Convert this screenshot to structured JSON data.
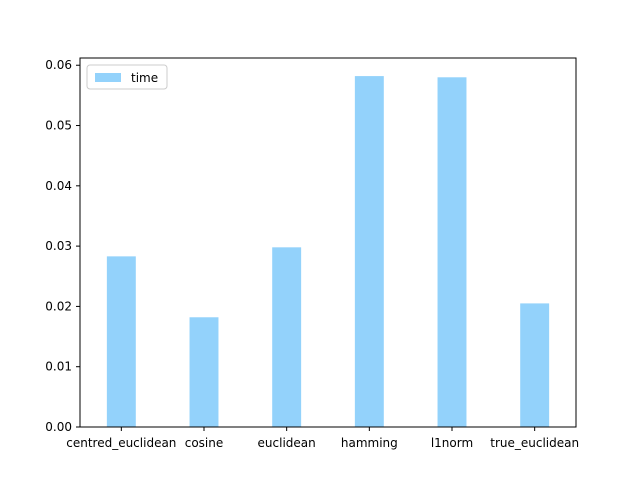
{
  "chart_data": {
    "type": "bar",
    "title": "",
    "xlabel": "",
    "ylabel": "",
    "categories": [
      "centred_euclidean",
      "cosine",
      "euclidean",
      "hamming",
      "l1norm",
      "true_euclidean"
    ],
    "series": [
      {
        "name": "time",
        "color": "#93d2fb",
        "values": [
          0.0283,
          0.0182,
          0.0298,
          0.0582,
          0.058,
          0.0205
        ]
      }
    ],
    "ylim": [
      0.0,
      0.0612
    ],
    "yticks": [
      0.0,
      0.01,
      0.02,
      0.03,
      0.04,
      0.05,
      0.06
    ],
    "ytick_labels": [
      "0.00",
      "0.01",
      "0.02",
      "0.03",
      "0.04",
      "0.05",
      "0.06"
    ],
    "grid": false,
    "legend_position": "top-left"
  }
}
